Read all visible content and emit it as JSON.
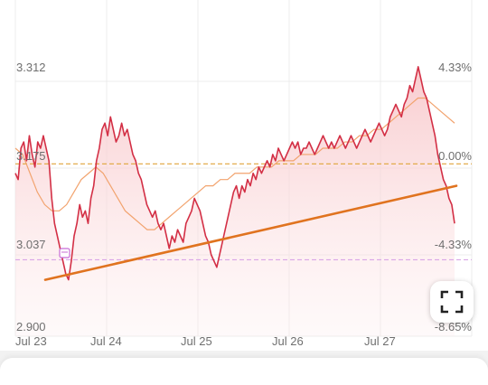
{
  "colors": {
    "line": "#d32f45",
    "fill": "#f8c9cc",
    "ma": "#f2a36e",
    "prev_close": "#e0a43a",
    "low_ref": "#d9a6e6",
    "trend": "#e0731f",
    "grid": "#ececec"
  },
  "icons": {
    "fullscreen": "fullscreen-icon",
    "marker": "calendar-badge-icon"
  },
  "chart_data": {
    "type": "line",
    "title": "",
    "xlabel": "",
    "ylabel": "",
    "x_ticks": [
      "Jul 23",
      "Jul 24",
      "Jul 25",
      "Jul 26",
      "Jul 27"
    ],
    "y_ticks_left": [
      "3.312",
      "3.175",
      "3.037",
      "2.900"
    ],
    "y_ticks_right": [
      "4.33%",
      "0.00%",
      "-4.33%",
      "-8.65%"
    ],
    "ylim": [
      2.9,
      3.35
    ],
    "reference_lines": {
      "previous_close": 3.175,
      "low_line": 3.022
    },
    "trendline": {
      "start": 2.99,
      "end": 3.14
    },
    "grid": true,
    "legend": "none",
    "series": [
      {
        "values": [
          3.16,
          3.15,
          3.2,
          3.21,
          3.18,
          3.22,
          3.19,
          3.17,
          3.21,
          3.2,
          3.22,
          3.2,
          3.18,
          3.12,
          3.08,
          3.06,
          3.04,
          3.02,
          3.0,
          2.99,
          3.02,
          3.06,
          3.08,
          3.11,
          3.09,
          3.1,
          3.08,
          3.12,
          3.14,
          3.18,
          3.2,
          3.23,
          3.24,
          3.22,
          3.25,
          3.23,
          3.21,
          3.22,
          3.24,
          3.22,
          3.23,
          3.21,
          3.19,
          3.18,
          3.16,
          3.15,
          3.13,
          3.11,
          3.1,
          3.09,
          3.1,
          3.08,
          3.07,
          3.08,
          3.06,
          3.04,
          3.06,
          3.05,
          3.07,
          3.06,
          3.05,
          3.08,
          3.09,
          3.1,
          3.12,
          3.11,
          3.1,
          3.08,
          3.06,
          3.05,
          3.03,
          3.02,
          3.01,
          3.03,
          3.05,
          3.07,
          3.09,
          3.11,
          3.13,
          3.14,
          3.12,
          3.14,
          3.13,
          3.15,
          3.14,
          3.16,
          3.15,
          3.17,
          3.16,
          3.17,
          3.18,
          3.17,
          3.19,
          3.18,
          3.2,
          3.19,
          3.18,
          3.19,
          3.2,
          3.21,
          3.2,
          3.21,
          3.19,
          3.2,
          3.2,
          3.21,
          3.2,
          3.19,
          3.2,
          3.21,
          3.22,
          3.21,
          3.2,
          3.21,
          3.2,
          3.21,
          3.22,
          3.21,
          3.2,
          3.21,
          3.22,
          3.21,
          3.2,
          3.21,
          3.22,
          3.23,
          3.22,
          3.21,
          3.22,
          3.23,
          3.24,
          3.23,
          3.22,
          3.23,
          3.25,
          3.26,
          3.27,
          3.26,
          3.25,
          3.27,
          3.28,
          3.3,
          3.29,
          3.31,
          3.33,
          3.31,
          3.29,
          3.28,
          3.26,
          3.24,
          3.22,
          3.19,
          3.17,
          3.15,
          3.14,
          3.12,
          3.11,
          3.08
        ]
      },
      {
        "name": "",
        "values": [
          3.2,
          3.19,
          3.16,
          3.13,
          3.11,
          3.1,
          3.1,
          3.11,
          3.13,
          3.15,
          3.16,
          3.17,
          3.16,
          3.14,
          3.12,
          3.1,
          3.09,
          3.08,
          3.07,
          3.07,
          3.08,
          3.09,
          3.1,
          3.11,
          3.12,
          3.13,
          3.14,
          3.14,
          3.15,
          3.15,
          3.16,
          3.16,
          3.16,
          3.17,
          3.17,
          3.17,
          3.18,
          3.18,
          3.18,
          3.19,
          3.19,
          3.19,
          3.2,
          3.2,
          3.2,
          3.21,
          3.21,
          3.22,
          3.22,
          3.23,
          3.23,
          3.24,
          3.25,
          3.26,
          3.27,
          3.28,
          3.28,
          3.27,
          3.26,
          3.25,
          3.24
        ]
      }
    ]
  }
}
